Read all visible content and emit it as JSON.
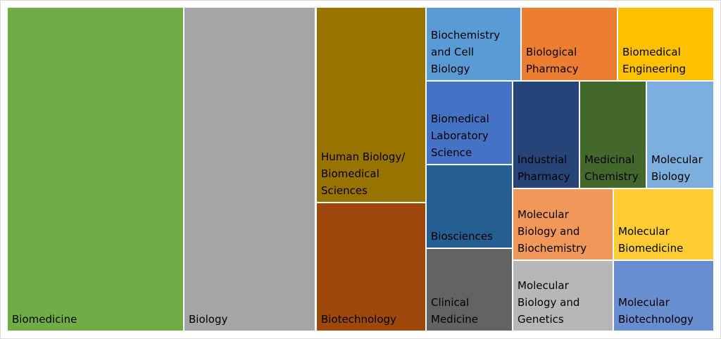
{
  "chart_data": {
    "type": "treemap",
    "items": [
      {
        "label": "Biomedicine",
        "color": "#70ad47"
      },
      {
        "label": "Biology",
        "color": "#a5a5a5"
      },
      {
        "label": "Human Biology/\nBiomedical\nSciences",
        "color": "#997300"
      },
      {
        "label": "Biotechnology",
        "color": "#9e480e"
      },
      {
        "label": "Biochemistry\nand Cell\nBiology",
        "color": "#5b9bd5"
      },
      {
        "label": "Biological\nPharmacy",
        "color": "#ed7d31"
      },
      {
        "label": "Biomedical\nEngineering",
        "color": "#ffc000"
      },
      {
        "label": "Biomedical\nLaboratory\nScience",
        "color": "#4472c4"
      },
      {
        "label": "Industrial\nPharmacy",
        "color": "#264478"
      },
      {
        "label": "Medicinal\nChemistry",
        "color": "#43682b"
      },
      {
        "label": "Molecular\nBiology",
        "color": "#7cafdd"
      },
      {
        "label": "Biosciences",
        "color": "#255e91"
      },
      {
        "label": "Clinical\nMedicine",
        "color": "#636363"
      },
      {
        "label": "Molecular\nBiology and\nBiochemistry",
        "color": "#f1975a"
      },
      {
        "label": "Molecular\nBiomedicine",
        "color": "#ffcd33"
      },
      {
        "label": "Molecular\nBiology and\nGenetics",
        "color": "#b7b7b7"
      },
      {
        "label": "Molecular\nBiotechnology",
        "color": "#698ed0"
      }
    ]
  }
}
